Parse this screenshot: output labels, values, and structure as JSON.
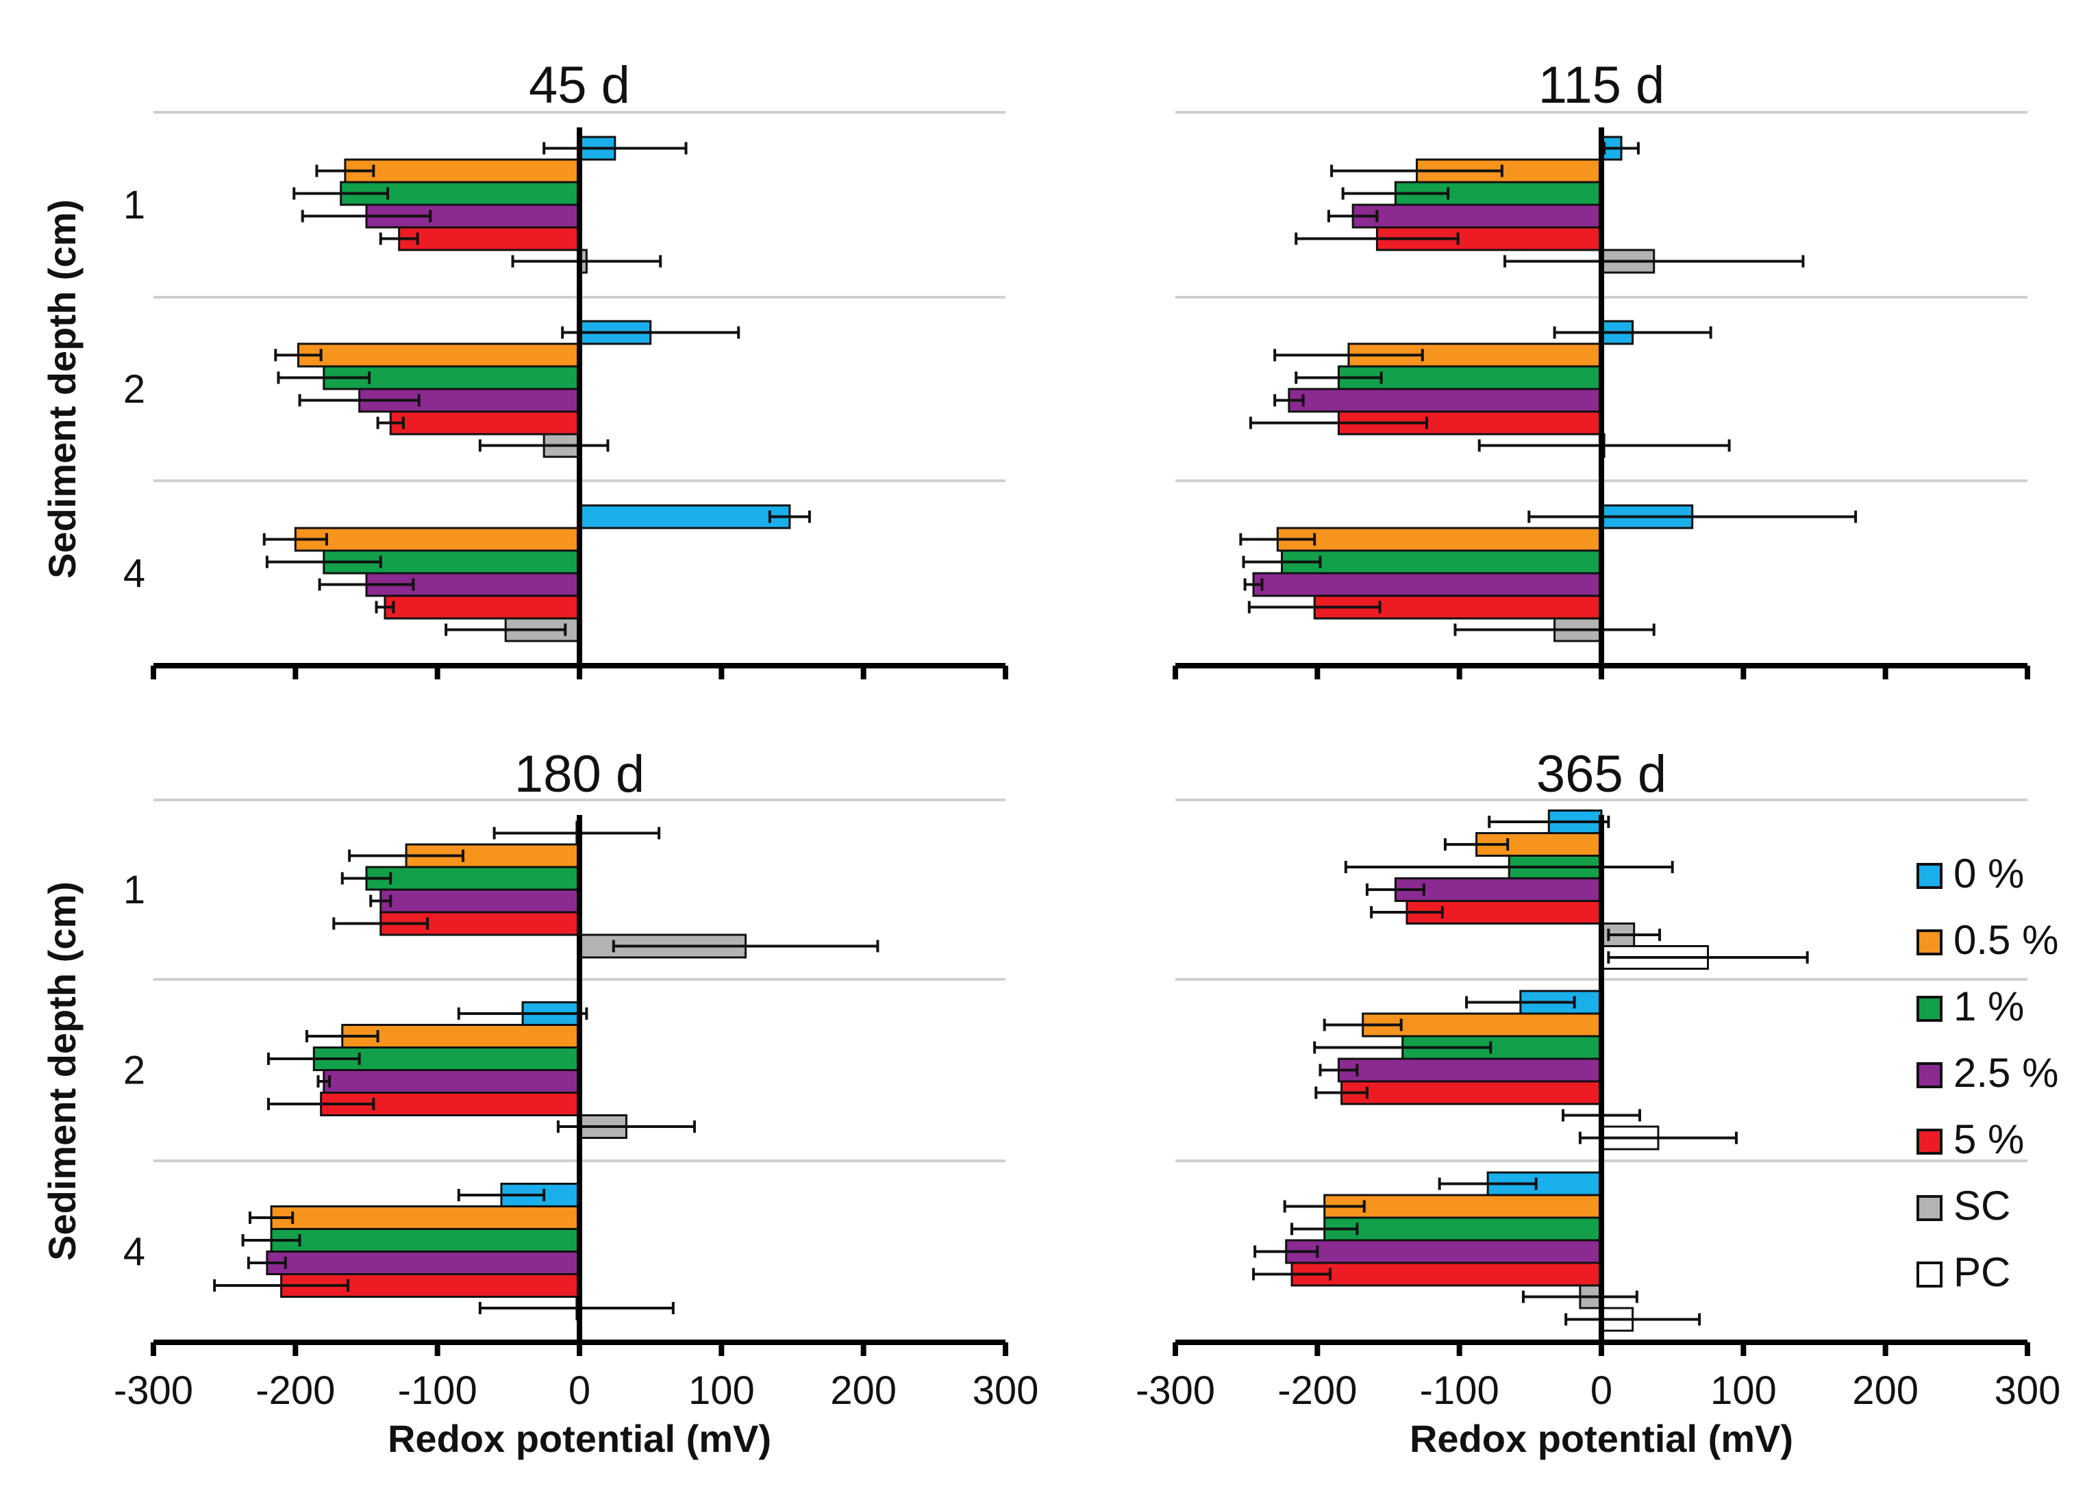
{
  "chart_data": {
    "type": "bar",
    "orientation": "horizontal",
    "xlabel": "Redox potential (mV)",
    "ylabel": "Sediment depth (cm)",
    "xlim": [
      -300,
      300
    ],
    "xticks": [
      "-300",
      "-200",
      "-100",
      "0",
      "100",
      "200",
      "300"
    ],
    "categories": [
      "1",
      "2",
      "4"
    ],
    "legend": {
      "position": "right",
      "entries": [
        {
          "name": "0 %",
          "color": "#1aaeea"
        },
        {
          "name": "0.5 %",
          "color": "#f7941d"
        },
        {
          "name": "1 %",
          "color": "#12a04a"
        },
        {
          "name": "2.5 %",
          "color": "#8b2a90"
        },
        {
          "name": "5 %",
          "color": "#ed1c24"
        },
        {
          "name": "SC",
          "color": "#b3b3b3"
        },
        {
          "name": "PC",
          "color": "#ffffff"
        }
      ]
    },
    "panels": [
      {
        "title": "45 d",
        "show_xlabel": false,
        "show_xticks": false,
        "series": [
          {
            "name": "0 %",
            "values": [
              25,
              50,
              148
            ],
            "errors": [
              50,
              62,
              14
            ]
          },
          {
            "name": "0.5 %",
            "values": [
              -165,
              -198,
              -200
            ],
            "errors": [
              20,
              16,
              22
            ]
          },
          {
            "name": "1 %",
            "values": [
              -168,
              -180,
              -180
            ],
            "errors": [
              33,
              32,
              40
            ]
          },
          {
            "name": "2.5 %",
            "values": [
              -150,
              -155,
              -150
            ],
            "errors": [
              45,
              42,
              33
            ]
          },
          {
            "name": "5 %",
            "values": [
              -127,
              -133,
              -137
            ],
            "errors": [
              13,
              9,
              6
            ]
          },
          {
            "name": "SC",
            "values": [
              5,
              -25,
              -52
            ],
            "errors": [
              52,
              45,
              42
            ]
          }
        ]
      },
      {
        "title": "115 d",
        "show_xlabel": false,
        "show_xticks": false,
        "series": [
          {
            "name": "0 %",
            "values": [
              14,
              22,
              64
            ],
            "errors": [
              12,
              55,
              115
            ]
          },
          {
            "name": "0.5 %",
            "values": [
              -130,
              -178,
              -228
            ],
            "errors": [
              60,
              52,
              26
            ]
          },
          {
            "name": "1 %",
            "values": [
              -145,
              -185,
              -225
            ],
            "errors": [
              37,
              30,
              27
            ]
          },
          {
            "name": "2.5 %",
            "values": [
              -175,
              -220,
              -245
            ],
            "errors": [
              17,
              10,
              6
            ]
          },
          {
            "name": "5 %",
            "values": [
              -158,
              -185,
              -202
            ],
            "errors": [
              57,
              62,
              46
            ]
          },
          {
            "name": "SC",
            "values": [
              37,
              2,
              -33
            ],
            "errors": [
              105,
              88,
              70
            ]
          }
        ]
      },
      {
        "title": "180 d",
        "show_xlabel": true,
        "show_xticks": true,
        "series": [
          {
            "name": "0 %",
            "values": [
              -2,
              -40,
              -55
            ],
            "errors": [
              58,
              45,
              30
            ]
          },
          {
            "name": "0.5 %",
            "values": [
              -122,
              -167,
              -217
            ],
            "errors": [
              40,
              25,
              15
            ]
          },
          {
            "name": "1 %",
            "values": [
              -150,
              -187,
              -217
            ],
            "errors": [
              17,
              32,
              20
            ]
          },
          {
            "name": "2.5 %",
            "values": [
              -140,
              -180,
              -220
            ],
            "errors": [
              7,
              4,
              13
            ]
          },
          {
            "name": "5 %",
            "values": [
              -140,
              -182,
              -210
            ],
            "errors": [
              33,
              37,
              47
            ]
          },
          {
            "name": "SC",
            "values": [
              117,
              33,
              -2
            ],
            "errors": [
              93,
              48,
              68
            ]
          }
        ]
      },
      {
        "title": "365 d",
        "show_xlabel": true,
        "show_xticks": true,
        "series": [
          {
            "name": "0 %",
            "values": [
              -37,
              -57,
              -80
            ],
            "errors": [
              42,
              38,
              34
            ]
          },
          {
            "name": "0.5 %",
            "values": [
              -88,
              -168,
              -195
            ],
            "errors": [
              22,
              27,
              28
            ]
          },
          {
            "name": "1 %",
            "values": [
              -65,
              -140,
              -195
            ],
            "errors": [
              115,
              62,
              23
            ]
          },
          {
            "name": "2.5 %",
            "values": [
              -145,
              -185,
              -222
            ],
            "errors": [
              20,
              13,
              22
            ]
          },
          {
            "name": "5 %",
            "values": [
              -137,
              -183,
              -218
            ],
            "errors": [
              25,
              18,
              27
            ]
          },
          {
            "name": "SC",
            "values": [
              23,
              0,
              -15
            ],
            "errors": [
              18,
              27,
              40
            ]
          },
          {
            "name": "PC",
            "values": [
              75,
              40,
              22
            ],
            "errors": [
              70,
              55,
              47
            ]
          }
        ]
      }
    ]
  }
}
